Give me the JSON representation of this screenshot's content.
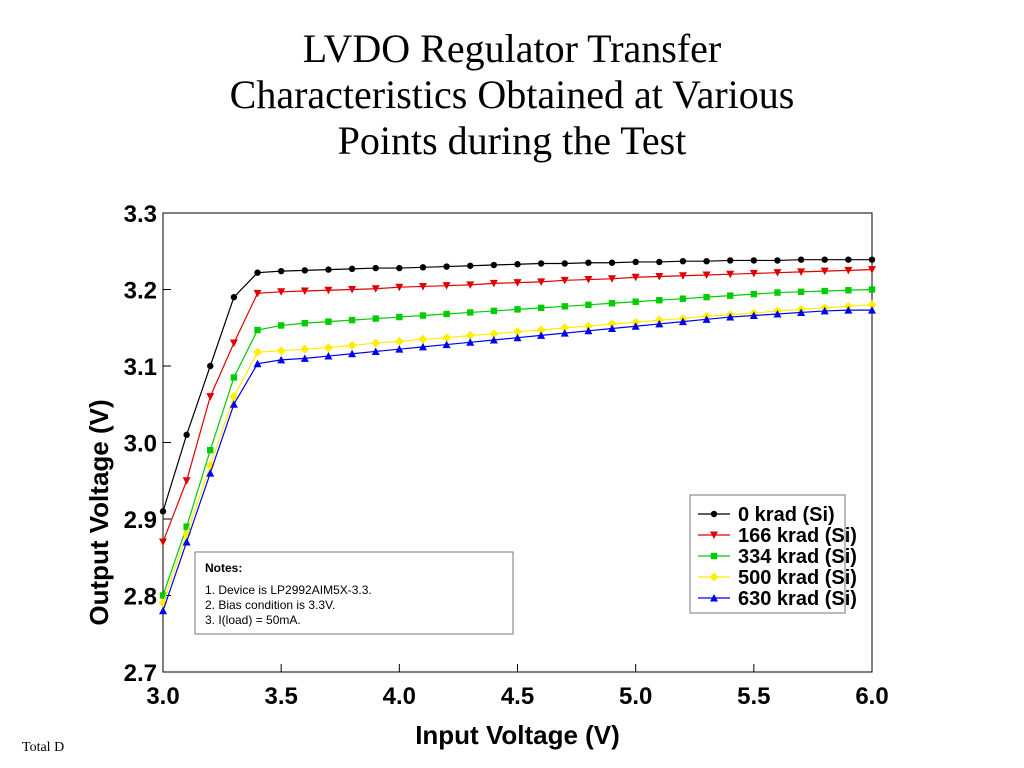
{
  "slide": {
    "title_lines": [
      "LVDO Regulator Transfer",
      "Characteristics Obtained at Various",
      "Points during the Test"
    ],
    "footer": "Total D"
  },
  "chart_data": {
    "type": "line",
    "xlabel": "Input Voltage (V)",
    "ylabel": "Output Voltage (V)",
    "xlim": [
      3.0,
      6.0
    ],
    "ylim": [
      2.7,
      3.3
    ],
    "xticks": [
      "3.0",
      "3.5",
      "4.0",
      "4.5",
      "5.0",
      "5.5",
      "6.0"
    ],
    "yticks": [
      "2.7",
      "2.8",
      "2.9",
      "3.0",
      "3.1",
      "3.2",
      "3.3"
    ],
    "grid": false,
    "legend_position": "right",
    "x": [
      3.0,
      3.1,
      3.2,
      3.3,
      3.4,
      3.5,
      3.6,
      3.7,
      3.8,
      3.9,
      4.0,
      4.1,
      4.2,
      4.3,
      4.4,
      4.5,
      4.6,
      4.7,
      4.8,
      4.9,
      5.0,
      5.1,
      5.2,
      5.3,
      5.4,
      5.5,
      5.6,
      5.7,
      5.8,
      5.9,
      6.0
    ],
    "series": [
      {
        "name": "0 krad (Si)",
        "color": "#000000",
        "marker": "circle",
        "values": [
          2.91,
          3.01,
          3.1,
          3.19,
          3.222,
          3.224,
          3.225,
          3.226,
          3.227,
          3.228,
          3.228,
          3.229,
          3.23,
          3.231,
          3.232,
          3.233,
          3.234,
          3.234,
          3.235,
          3.235,
          3.236,
          3.236,
          3.237,
          3.237,
          3.238,
          3.238,
          3.238,
          3.239,
          3.239,
          3.239,
          3.239
        ]
      },
      {
        "name": "166 krad (Si)",
        "color": "#e00000",
        "marker": "triangle-down",
        "values": [
          2.87,
          2.95,
          3.06,
          3.13,
          3.195,
          3.197,
          3.198,
          3.199,
          3.2,
          3.201,
          3.203,
          3.204,
          3.205,
          3.206,
          3.208,
          3.209,
          3.21,
          3.212,
          3.213,
          3.214,
          3.216,
          3.217,
          3.218,
          3.219,
          3.22,
          3.221,
          3.222,
          3.223,
          3.224,
          3.225,
          3.226
        ]
      },
      {
        "name": "334 krad (Si)",
        "color": "#00cc00",
        "marker": "square",
        "values": [
          2.8,
          2.89,
          2.99,
          3.085,
          3.147,
          3.153,
          3.156,
          3.158,
          3.16,
          3.162,
          3.164,
          3.166,
          3.168,
          3.17,
          3.172,
          3.174,
          3.176,
          3.178,
          3.18,
          3.182,
          3.184,
          3.186,
          3.188,
          3.19,
          3.192,
          3.194,
          3.196,
          3.197,
          3.198,
          3.199,
          3.2
        ]
      },
      {
        "name": "500 krad (Si)",
        "color": "#ffee00",
        "marker": "diamond",
        "values": [
          2.79,
          2.88,
          2.97,
          3.06,
          3.118,
          3.12,
          3.122,
          3.124,
          3.127,
          3.13,
          3.132,
          3.135,
          3.137,
          3.14,
          3.142,
          3.145,
          3.147,
          3.15,
          3.152,
          3.155,
          3.157,
          3.16,
          3.162,
          3.165,
          3.167,
          3.169,
          3.172,
          3.174,
          3.176,
          3.178,
          3.18
        ]
      },
      {
        "name": "630 krad (Si)",
        "color": "#0000ee",
        "marker": "triangle-up",
        "values": [
          2.78,
          2.87,
          2.96,
          3.05,
          3.103,
          3.108,
          3.11,
          3.113,
          3.116,
          3.119,
          3.122,
          3.125,
          3.128,
          3.131,
          3.134,
          3.137,
          3.14,
          3.143,
          3.146,
          3.149,
          3.152,
          3.155,
          3.158,
          3.161,
          3.164,
          3.166,
          3.168,
          3.17,
          3.172,
          3.173,
          3.173
        ]
      }
    ],
    "notes": {
      "heading": "Notes:",
      "lines": [
        "1. Device is LP2992AIM5X-3.3.",
        "2. Bias condition is 3.3V.",
        "3. I(load) = 50mA."
      ]
    }
  }
}
